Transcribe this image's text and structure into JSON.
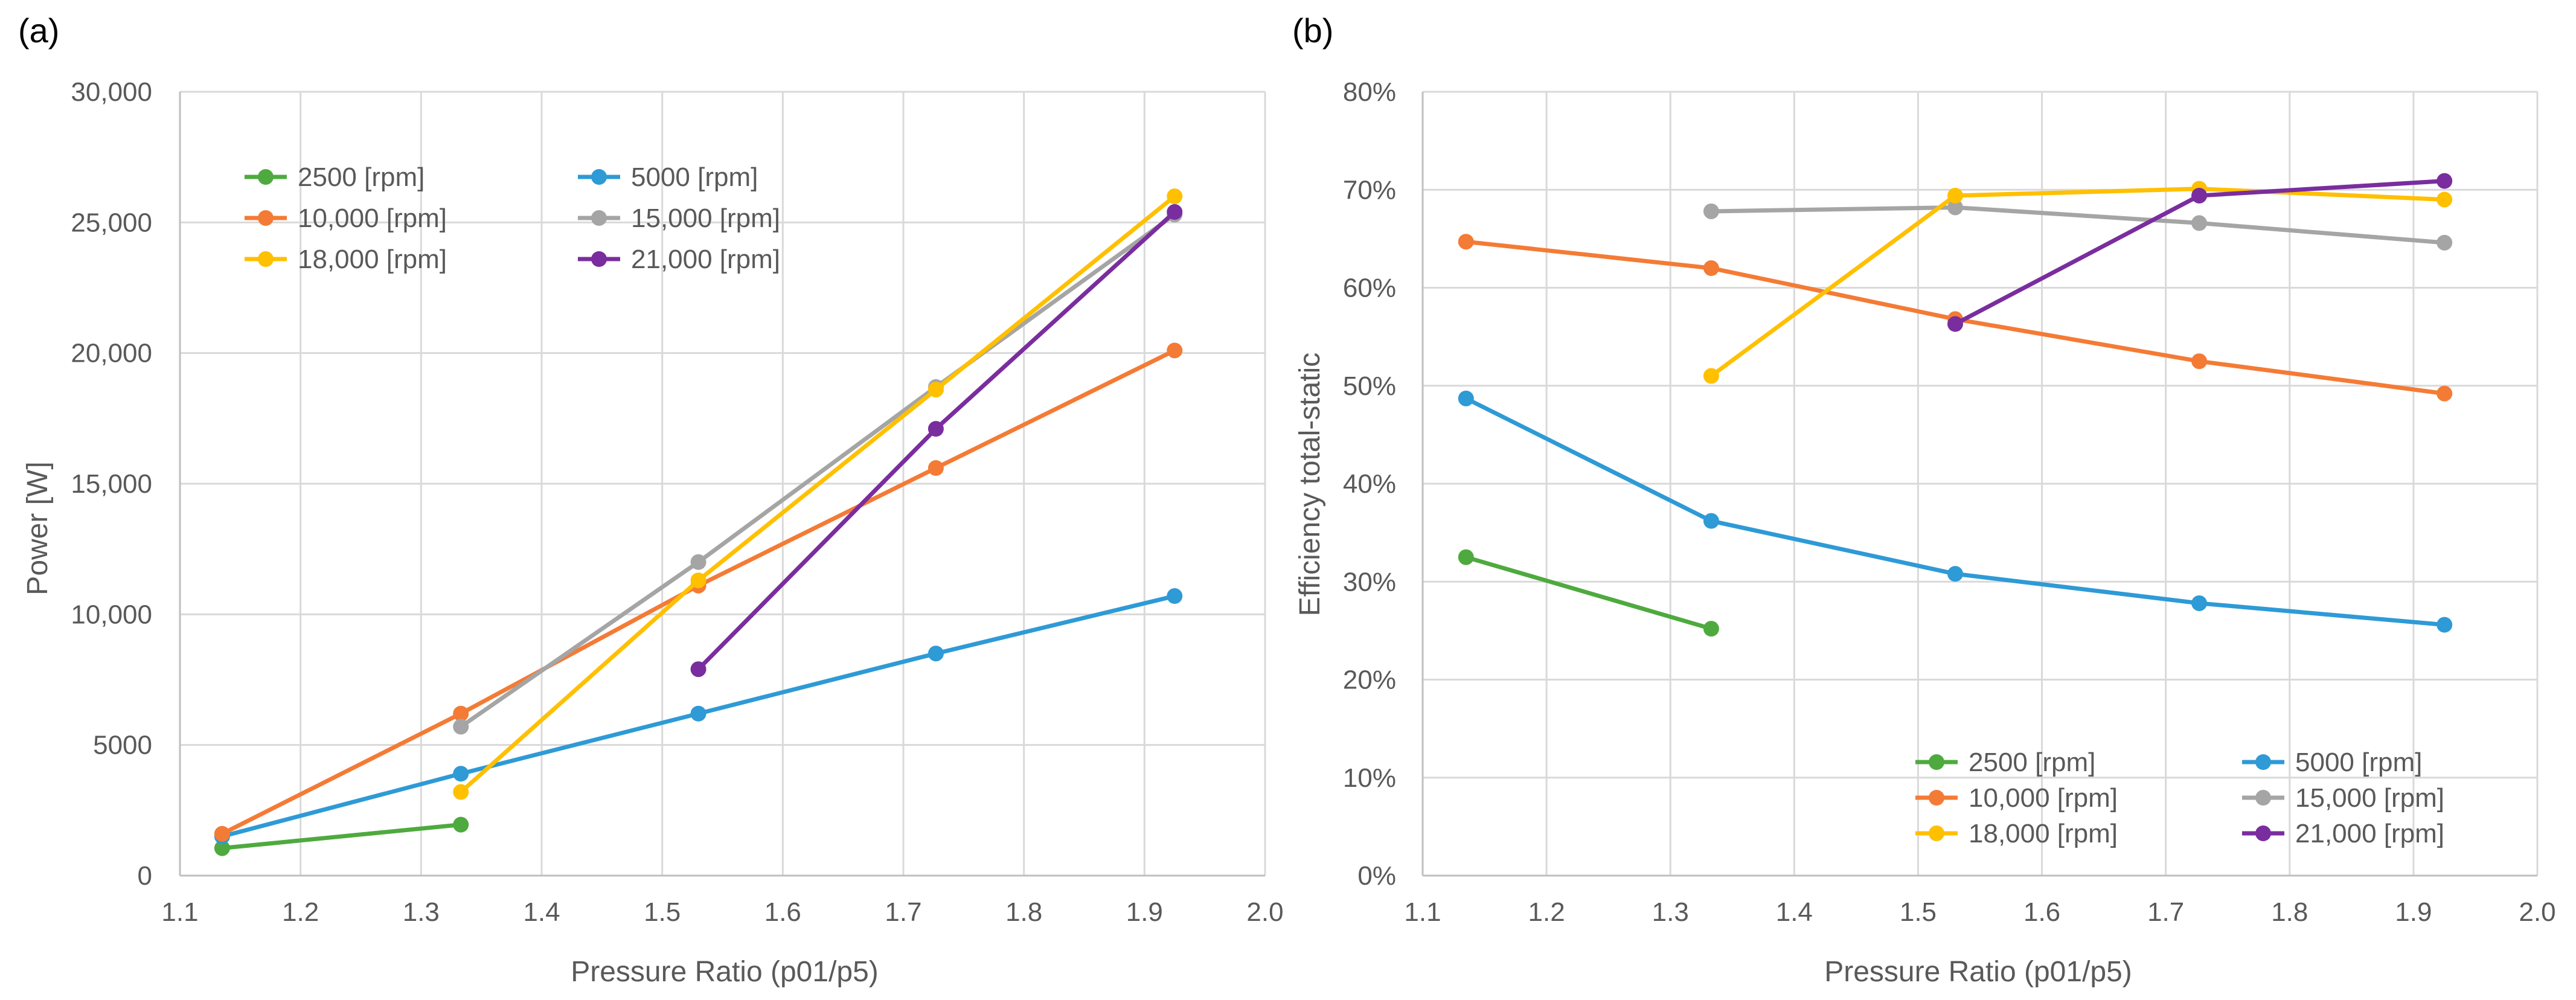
{
  "chart_data": [
    {
      "panel_label": "(a)",
      "type": "line",
      "title": "",
      "xlabel": "Pressure Ratio (p01/p5)",
      "ylabel": "Power [W]",
      "xlim": [
        1.1,
        2.0
      ],
      "ylim": [
        0,
        30000
      ],
      "xticks": [
        1.1,
        1.2,
        1.3,
        1.4,
        1.5,
        1.6,
        1.7,
        1.8,
        1.9,
        2.0
      ],
      "xtick_labels": [
        "1.1",
        "1.2",
        "1.3",
        "1.4",
        "1.5",
        "1.6",
        "1.7",
        "1.8",
        "1.9",
        "2.0"
      ],
      "yticks": [
        0,
        5000,
        10000,
        15000,
        20000,
        25000,
        30000
      ],
      "ytick_labels": [
        "0",
        "5000",
        "10,000",
        "15,000",
        "20,000",
        "25,000",
        "30,000"
      ],
      "grid": true,
      "legend_position": "top-left",
      "series": [
        {
          "name": "2500 [rpm]",
          "color": "#4EAA3E",
          "x": [
            1.135,
            1.333
          ],
          "y": [
            1050,
            1950
          ]
        },
        {
          "name": "5000 [rpm]",
          "color": "#2E9AD6",
          "x": [
            1.135,
            1.333,
            1.53,
            1.727,
            1.925
          ],
          "y": [
            1500,
            3900,
            6200,
            8500,
            10700
          ]
        },
        {
          "name": "10,000 [rpm]",
          "color": "#F47B35",
          "x": [
            1.135,
            1.333,
            1.53,
            1.727,
            1.925
          ],
          "y": [
            1600,
            6200,
            11100,
            15600,
            20100
          ]
        },
        {
          "name": "15,000 [rpm]",
          "color": "#A5A5A5",
          "x": [
            1.333,
            1.53,
            1.727,
            1.925
          ],
          "y": [
            5700,
            12000,
            18700,
            25300
          ]
        },
        {
          "name": "18,000 [rpm]",
          "color": "#FFC000",
          "x": [
            1.333,
            1.53,
            1.727,
            1.925
          ],
          "y": [
            3200,
            11300,
            18600,
            26000
          ]
        },
        {
          "name": "21,000 [rpm]",
          "color": "#7A2D9E",
          "x": [
            1.53,
            1.727,
            1.925
          ],
          "y": [
            7900,
            17100,
            25400
          ]
        }
      ]
    },
    {
      "panel_label": "(b)",
      "type": "line",
      "title": "",
      "xlabel": "Pressure Ratio (p01/p5)",
      "ylabel": "Efficiency total-static",
      "xlim": [
        1.1,
        2.0
      ],
      "ylim": [
        0,
        0.8
      ],
      "xticks": [
        1.1,
        1.2,
        1.3,
        1.4,
        1.5,
        1.6,
        1.7,
        1.8,
        1.9,
        2.0
      ],
      "xtick_labels": [
        "1.1",
        "1.2",
        "1.3",
        "1.4",
        "1.5",
        "1.6",
        "1.7",
        "1.8",
        "1.9",
        "2.0"
      ],
      "yticks": [
        0,
        0.1,
        0.2,
        0.3,
        0.4,
        0.5,
        0.6,
        0.7,
        0.8
      ],
      "ytick_labels": [
        "0%",
        "10%",
        "20%",
        "30%",
        "40%",
        "50%",
        "60%",
        "70%",
        "80%"
      ],
      "grid": true,
      "legend_position": "bottom-right",
      "series": [
        {
          "name": "2500 [rpm]",
          "color": "#4EAA3E",
          "x": [
            1.135,
            1.333
          ],
          "y": [
            0.325,
            0.252
          ]
        },
        {
          "name": "5000 [rpm]",
          "color": "#2E9AD6",
          "x": [
            1.135,
            1.333,
            1.53,
            1.727,
            1.925
          ],
          "y": [
            0.487,
            0.362,
            0.308,
            0.278,
            0.256
          ]
        },
        {
          "name": "10,000 [rpm]",
          "color": "#F47B35",
          "x": [
            1.135,
            1.333,
            1.53,
            1.727,
            1.925
          ],
          "y": [
            0.647,
            0.62,
            0.568,
            0.525,
            0.492
          ]
        },
        {
          "name": "15,000 [rpm]",
          "color": "#A5A5A5",
          "x": [
            1.333,
            1.53,
            1.727,
            1.925
          ],
          "y": [
            0.678,
            0.682,
            0.666,
            0.646
          ]
        },
        {
          "name": "18,000 [rpm]",
          "color": "#FFC000",
          "x": [
            1.333,
            1.53,
            1.727,
            1.925
          ],
          "y": [
            0.51,
            0.694,
            0.701,
            0.69
          ]
        },
        {
          "name": "21,000 [rpm]",
          "color": "#7A2D9E",
          "x": [
            1.53,
            1.727,
            1.925
          ],
          "y": [
            0.563,
            0.694,
            0.709
          ]
        }
      ]
    }
  ]
}
